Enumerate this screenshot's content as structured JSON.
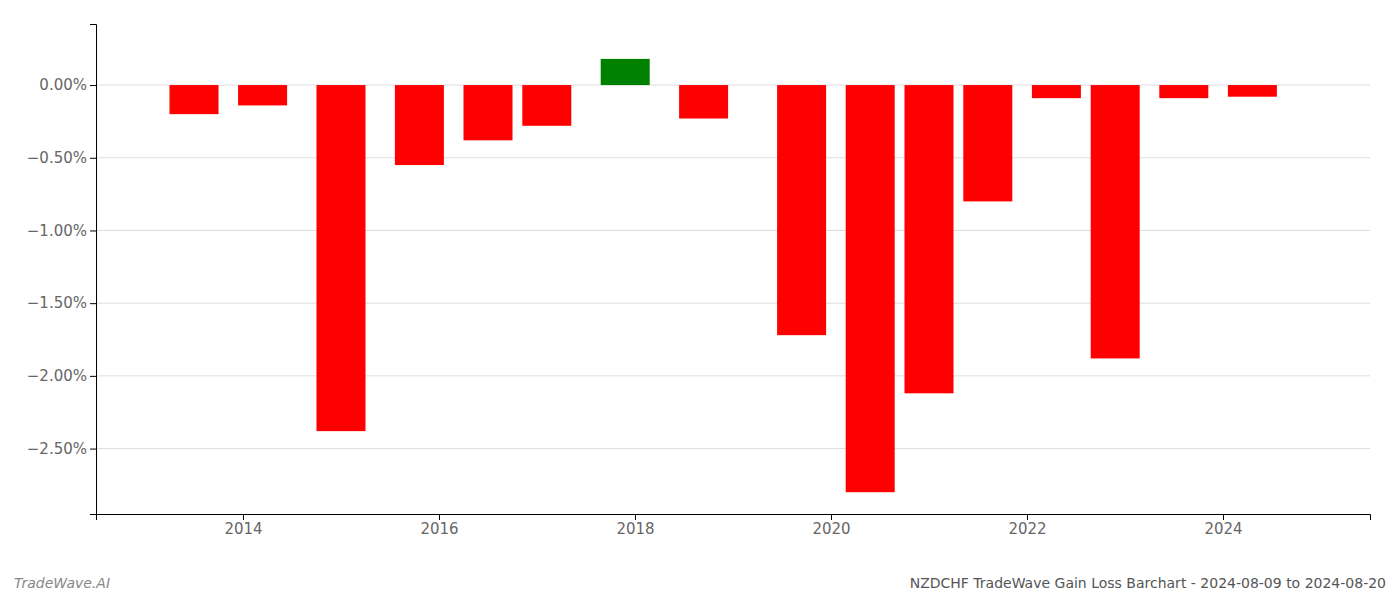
{
  "chart_data": {
    "type": "bar",
    "title": "NZDCHF TradeWave Gain Loss Barchart - 2024-08-09 to 2024-08-20",
    "annotations": [
      "TradeWave.AI"
    ],
    "x": [
      2013.5,
      2014.2,
      2015.0,
      2015.8,
      2016.5,
      2017.1,
      2017.9,
      2018.7,
      2019.7,
      2020.4,
      2021.0,
      2021.6,
      2022.3,
      2022.9,
      2023.6,
      2024.3
    ],
    "values": [
      -0.2,
      -0.14,
      -2.38,
      -0.55,
      -0.38,
      -0.28,
      0.18,
      -0.23,
      -1.72,
      -2.8,
      -2.12,
      -0.8,
      -0.09,
      -1.88,
      -0.09,
      -0.08
    ],
    "colors": [
      "red",
      "red",
      "red",
      "red",
      "red",
      "red",
      "green",
      "red",
      "red",
      "red",
      "red",
      "red",
      "red",
      "red",
      "red",
      "red"
    ],
    "xlim": [
      2012.5,
      2025.5
    ],
    "xticks": [
      2014,
      2016,
      2018,
      2020,
      2022,
      2024
    ],
    "ylim": [
      -2.95,
      0.42
    ],
    "yticks": [
      {
        "value": 0.0,
        "label": "0.00%"
      },
      {
        "value": -0.5,
        "label": "−0.50%"
      },
      {
        "value": -1.0,
        "label": "−1.00%"
      },
      {
        "value": -1.5,
        "label": "−1.50%"
      },
      {
        "value": -2.0,
        "label": "−2.00%"
      },
      {
        "value": -2.5,
        "label": "−2.50%"
      }
    ],
    "grid": true
  }
}
